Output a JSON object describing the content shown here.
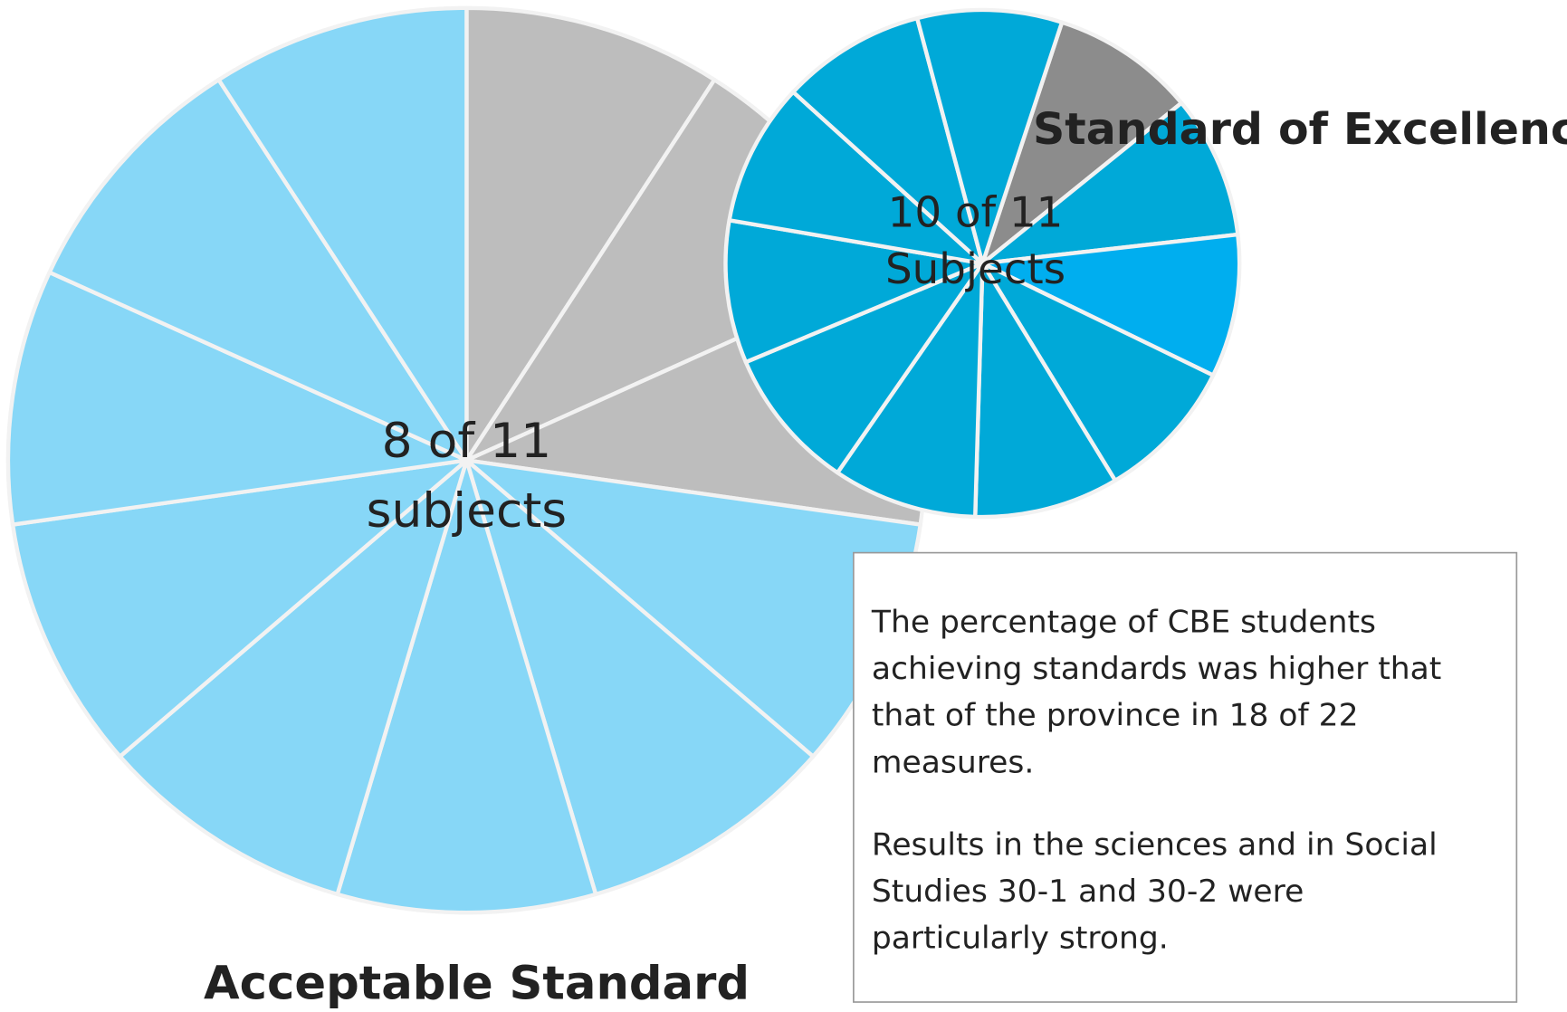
{
  "chart_data": [
    {
      "type": "pie",
      "title": "Acceptable Standard",
      "center_label": [
        "8 of 11",
        "subjects"
      ],
      "values": [
        1,
        1,
        1,
        1,
        1,
        1,
        1,
        1,
        1,
        1,
        1
      ],
      "colors": [
        "#bdbdbd",
        "#bdbdbd",
        "#bdbdbd",
        "#87d7f7",
        "#87d7f7",
        "#87d7f7",
        "#87d7f7",
        "#87d7f7",
        "#87d7f7",
        "#87d7f7",
        "#87d7f7"
      ]
    },
    {
      "type": "pie",
      "title": "Standard of Excellence",
      "center_label": [
        "10 of 11",
        "Subjects"
      ],
      "values": [
        1,
        1,
        1,
        1,
        1,
        1,
        1,
        1,
        1,
        1,
        1
      ],
      "colors": [
        "#8c8c8c",
        "#00a9d8",
        "#00aeef",
        "#00a9d8",
        "#00a9d8",
        "#00a9d8",
        "#00a9d8",
        "#00a9d8",
        "#00a9d8",
        "#00a9d8",
        "#00a9d8"
      ]
    }
  ],
  "note": {
    "paragraphs": [
      [
        "The percentage of CBE students",
        "achieving standards was higher that",
        "that of the province in 18 of 22",
        "measures."
      ],
      [
        "Results in the sciences and in Social",
        "Studies 30-1 and 30-2 were",
        "particularly strong."
      ]
    ]
  }
}
